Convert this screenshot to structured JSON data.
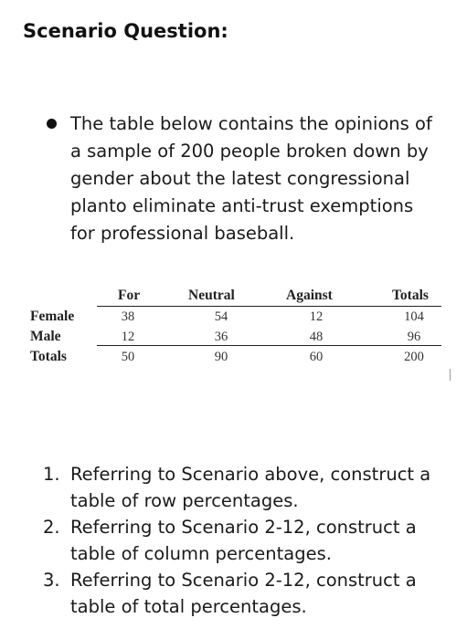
{
  "heading": "Scenario Question:",
  "bullet": "The table below contains the opinions of a sample of 200 people broken down by gender about the latest congressional planto eliminate anti-trust exemptions for professional baseball.",
  "table": {
    "headers": [
      "For",
      "Neutral",
      "Against",
      "Totals"
    ],
    "rows": [
      {
        "label": "Female",
        "values": [
          "38",
          "54",
          "12",
          "104"
        ]
      },
      {
        "label": "Male",
        "values": [
          "12",
          "36",
          "48",
          "96"
        ]
      },
      {
        "label": "Totals",
        "values": [
          "50",
          "90",
          "60",
          "200"
        ]
      }
    ]
  },
  "questions": [
    {
      "num": "1.",
      "text": "Referring to Scenario above, construct a table of row percentages."
    },
    {
      "num": "2.",
      "text": "Referring to Scenario 2-12, construct a table of column percentages."
    },
    {
      "num": "3.",
      "text": "Referring to Scenario 2-12, construct a table of total percentages."
    }
  ]
}
